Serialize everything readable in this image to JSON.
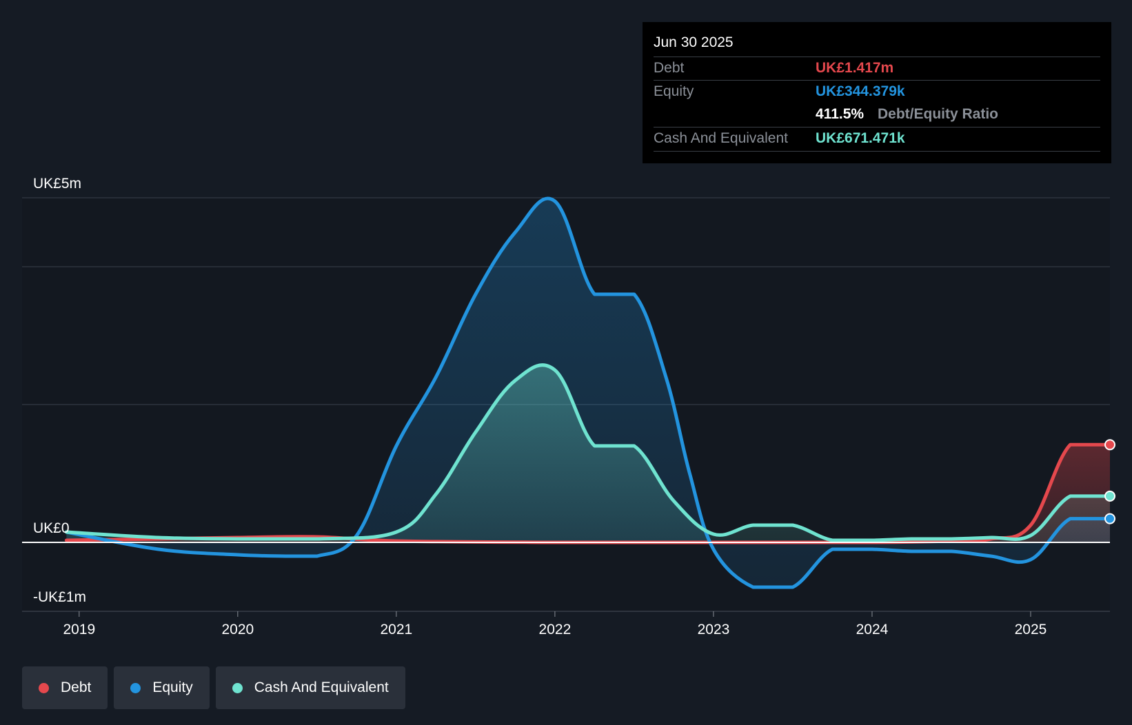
{
  "chart_data": {
    "type": "area",
    "ylim": [
      -1000000,
      5000000
    ],
    "y_tick_labels": [
      {
        "value": 5000000,
        "label": "UK£5m"
      },
      {
        "value": 0,
        "label": "UK£0"
      },
      {
        "value": -1000000,
        "label": "-UK£1m"
      }
    ],
    "x_ticks": [
      2019,
      2020,
      2021,
      2022,
      2023,
      2024,
      2025
    ],
    "xlim": [
      2018.64,
      2025.5
    ],
    "series": [
      {
        "name": "Debt",
        "color": "#e5484d",
        "points": [
          [
            2018.92,
            0.03
          ],
          [
            2019.5,
            0.05
          ],
          [
            2020.0,
            0.07
          ],
          [
            2020.5,
            0.08
          ],
          [
            2021.0,
            0.02
          ],
          [
            2022.0,
            0.0
          ],
          [
            2023.0,
            0.0
          ],
          [
            2024.0,
            0.0
          ],
          [
            2024.5,
            0.02
          ],
          [
            2024.75,
            0.05
          ],
          [
            2025.0,
            0.25
          ],
          [
            2025.25,
            1.417
          ],
          [
            2025.5,
            1.417
          ]
        ]
      },
      {
        "name": "Equity",
        "color": "#2394df",
        "points": [
          [
            2018.92,
            0.15
          ],
          [
            2019.5,
            -0.1
          ],
          [
            2020.0,
            -0.18
          ],
          [
            2020.3,
            -0.2
          ],
          [
            2020.5,
            -0.2
          ],
          [
            2020.75,
            0.1
          ],
          [
            2021.0,
            1.4
          ],
          [
            2021.25,
            2.4
          ],
          [
            2021.5,
            3.6
          ],
          [
            2021.75,
            4.5
          ],
          [
            2022.0,
            4.95
          ],
          [
            2022.25,
            3.6
          ],
          [
            2022.5,
            3.6
          ],
          [
            2022.7,
            2.4
          ],
          [
            2022.85,
            1.0
          ],
          [
            2023.0,
            -0.1
          ],
          [
            2023.25,
            -0.65
          ],
          [
            2023.5,
            -0.65
          ],
          [
            2023.75,
            -0.1
          ],
          [
            2024.0,
            -0.1
          ],
          [
            2024.25,
            -0.13
          ],
          [
            2024.5,
            -0.13
          ],
          [
            2024.75,
            -0.2
          ],
          [
            2025.0,
            -0.25
          ],
          [
            2025.25,
            0.344
          ],
          [
            2025.5,
            0.344
          ]
        ]
      },
      {
        "name": "Cash And Equivalent",
        "color": "#6fe3d0",
        "points": [
          [
            2018.92,
            0.15
          ],
          [
            2019.5,
            0.07
          ],
          [
            2020.0,
            0.05
          ],
          [
            2020.5,
            0.05
          ],
          [
            2021.0,
            0.15
          ],
          [
            2021.25,
            0.7
          ],
          [
            2021.5,
            1.6
          ],
          [
            2021.75,
            2.35
          ],
          [
            2022.0,
            2.5
          ],
          [
            2022.25,
            1.4
          ],
          [
            2022.5,
            1.4
          ],
          [
            2022.75,
            0.6
          ],
          [
            2023.0,
            0.12
          ],
          [
            2023.25,
            0.25
          ],
          [
            2023.5,
            0.25
          ],
          [
            2023.75,
            0.03
          ],
          [
            2024.0,
            0.03
          ],
          [
            2024.25,
            0.05
          ],
          [
            2024.5,
            0.05
          ],
          [
            2024.75,
            0.07
          ],
          [
            2025.0,
            0.1
          ],
          [
            2025.25,
            0.671
          ],
          [
            2025.5,
            0.671
          ]
        ]
      }
    ],
    "values_unit": "UK£m"
  },
  "tooltip": {
    "date": "Jun 30 2025",
    "debt_label": "Debt",
    "debt_value": "UK£1.417m",
    "equity_label": "Equity",
    "equity_value": "UK£344.379k",
    "ratio_value": "411.5%",
    "ratio_label": "Debt/Equity Ratio",
    "cash_label": "Cash And Equivalent",
    "cash_value": "UK£671.471k"
  },
  "legend": {
    "debt": "Debt",
    "equity": "Equity",
    "cash": "Cash And Equivalent"
  },
  "colors": {
    "debt": "#e5484d",
    "equity": "#2394df",
    "cash": "#6fe3d0",
    "background": "#151b24"
  }
}
